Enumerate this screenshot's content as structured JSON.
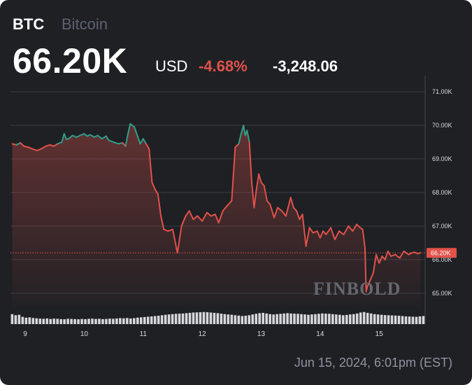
{
  "header": {
    "ticker": "BTC",
    "name": "Bitcoin",
    "price": "66.20K",
    "currency": "USD",
    "change_pct": "-4.68%",
    "change_abs": "-3,248.06"
  },
  "timestamp": "Jun 15, 2024, 6:01pm (EST)",
  "watermark": "FINBOLD",
  "colors": {
    "background": "#1f2024",
    "up": "#2f9e8a",
    "down": "#e0524a",
    "grid": "#3a3c42",
    "volume": "#d7d8dc"
  },
  "chart_data": {
    "type": "line",
    "ylim": [
      64.6,
      71.4
    ],
    "y_ticks": [
      "65.00K",
      "66.00K",
      "67.00K",
      "68.00K",
      "69.00K",
      "70.00K",
      "71.00K"
    ],
    "y_tick_values": [
      65,
      66,
      67,
      68,
      69,
      70,
      71
    ],
    "x_ticks": [
      "9",
      "10",
      "11",
      "12",
      "13",
      "14",
      "15"
    ],
    "x_tick_values": [
      9,
      10,
      11,
      12,
      13,
      14,
      15
    ],
    "xlim": [
      8.75,
      15.78
    ],
    "baseline": 69.45,
    "last_price_label": "66.20K",
    "last_price": 66.2,
    "x": [
      8.78,
      8.85,
      8.92,
      8.98,
      9.05,
      9.12,
      9.2,
      9.27,
      9.35,
      9.42,
      9.48,
      9.55,
      9.62,
      9.66,
      9.7,
      9.75,
      9.8,
      9.87,
      9.93,
      10.0,
      10.05,
      10.1,
      10.17,
      10.23,
      10.3,
      10.37,
      10.42,
      10.5,
      10.58,
      10.65,
      10.7,
      10.73,
      10.78,
      10.85,
      10.9,
      10.95,
      11.0,
      11.05,
      11.1,
      11.15,
      11.2,
      11.25,
      11.3,
      11.35,
      11.42,
      11.5,
      11.58,
      11.65,
      11.72,
      11.78,
      11.85,
      11.92,
      12.0,
      12.08,
      12.15,
      12.22,
      12.28,
      12.35,
      12.42,
      12.5,
      12.56,
      12.62,
      12.66,
      12.7,
      12.73,
      12.76,
      12.8,
      12.84,
      12.88,
      12.92,
      12.96,
      13.0,
      13.05,
      13.1,
      13.15,
      13.22,
      13.28,
      13.35,
      13.42,
      13.5,
      13.55,
      13.6,
      13.65,
      13.7,
      13.76,
      13.82,
      13.88,
      13.95,
      14.0,
      14.05,
      14.1,
      14.18,
      14.25,
      14.32,
      14.4,
      14.48,
      14.55,
      14.62,
      14.68,
      14.72,
      14.76,
      14.78,
      14.8,
      14.84,
      14.9,
      14.95,
      15.0,
      15.05,
      15.1,
      15.15,
      15.2,
      15.27,
      15.35,
      15.42,
      15.5,
      15.55,
      15.6,
      15.65,
      15.7
    ],
    "y": [
      69.45,
      69.42,
      69.48,
      69.38,
      69.35,
      69.3,
      69.25,
      69.3,
      69.38,
      69.42,
      69.38,
      69.45,
      69.5,
      69.75,
      69.58,
      69.62,
      69.7,
      69.65,
      69.7,
      69.75,
      69.68,
      69.72,
      69.65,
      69.7,
      69.6,
      69.68,
      69.55,
      69.5,
      69.45,
      69.48,
      69.38,
      69.65,
      70.05,
      69.95,
      69.7,
      69.45,
      69.6,
      69.45,
      69.3,
      68.3,
      68.1,
      67.95,
      67.3,
      66.9,
      66.85,
      66.9,
      66.2,
      67.0,
      67.3,
      67.45,
      67.2,
      67.3,
      67.15,
      67.4,
      67.3,
      67.35,
      67.1,
      67.45,
      67.6,
      67.75,
      69.35,
      69.45,
      69.75,
      70.0,
      69.7,
      69.85,
      69.5,
      68.3,
      67.55,
      68.1,
      68.55,
      68.3,
      68.2,
      67.75,
      67.65,
      67.25,
      67.55,
      67.45,
      67.3,
      67.85,
      67.55,
      67.45,
      67.2,
      67.35,
      66.4,
      66.95,
      66.8,
      66.85,
      66.65,
      66.85,
      66.75,
      66.95,
      66.6,
      66.85,
      66.75,
      67.0,
      66.85,
      67.05,
      66.95,
      66.9,
      66.35,
      65.05,
      65.2,
      65.35,
      65.6,
      66.15,
      65.9,
      66.1,
      66.0,
      66.25,
      66.1,
      66.15,
      66.05,
      66.25,
      66.15,
      66.2,
      66.22,
      66.18,
      66.2
    ],
    "volume_bars": 119,
    "volume": [
      0.62,
      0.55,
      0.58,
      0.45,
      0.4,
      0.42,
      0.38,
      0.36,
      0.34,
      0.33,
      0.35,
      0.32,
      0.34,
      0.33,
      0.31,
      0.3,
      0.33,
      0.32,
      0.31,
      0.3,
      0.32,
      0.31,
      0.33,
      0.34,
      0.32,
      0.33,
      0.31,
      0.32,
      0.34,
      0.33,
      0.35,
      0.37,
      0.36,
      0.38,
      0.35,
      0.37,
      0.4,
      0.42,
      0.44,
      0.46,
      0.48,
      0.5,
      0.52,
      0.55,
      0.58,
      0.6,
      0.62,
      0.64,
      0.65,
      0.66,
      0.68,
      0.7,
      0.72,
      0.73,
      0.74,
      0.75,
      0.74,
      0.72,
      0.7,
      0.68,
      0.65,
      0.62,
      0.6,
      0.58,
      0.55,
      0.53,
      0.5,
      0.52,
      0.55,
      0.6,
      0.64,
      0.68,
      0.7,
      0.66,
      0.62,
      0.6,
      0.62,
      0.64,
      0.66,
      0.68,
      0.66,
      0.65,
      0.64,
      0.62,
      0.6,
      0.58,
      0.6,
      0.62,
      0.64,
      0.66,
      0.65,
      0.64,
      0.62,
      0.6,
      0.58,
      0.55,
      0.57,
      0.6,
      0.62,
      0.66,
      0.72,
      0.75,
      0.7,
      0.66,
      0.62,
      0.6,
      0.58,
      0.56,
      0.55,
      0.54,
      0.53,
      0.52,
      0.5,
      0.48,
      0.47,
      0.46,
      0.45,
      0.48,
      0.5
    ]
  }
}
